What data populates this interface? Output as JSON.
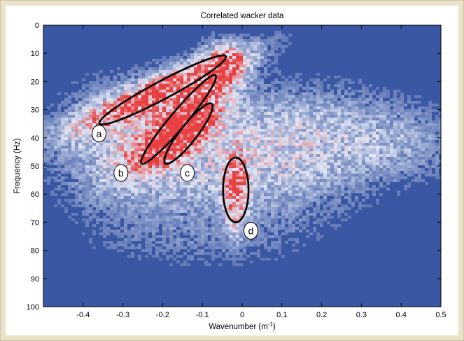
{
  "chart_data": {
    "type": "heatmap",
    "title": "Correlated wacker data",
    "xlabel": "Wavenumber (m",
    "xlabel_sup": "-1",
    "xlabel_close": ")",
    "ylabel": "Frequency (Hz)",
    "xlim": [
      -0.5,
      0.5
    ],
    "ylim": [
      0,
      100
    ],
    "y_reversed": true,
    "x_ticks": [
      -0.4,
      -0.3,
      -0.2,
      -0.1,
      0,
      0.1,
      0.2,
      0.3,
      0.4,
      0.5
    ],
    "x_tick_labels": [
      "-0.4",
      "-0.3",
      "-0.2",
      "-0.1",
      "0",
      "0.1",
      "0.2",
      "0.3",
      "0.4",
      "0.5"
    ],
    "y_ticks": [
      0,
      10,
      20,
      30,
      40,
      50,
      60,
      70,
      80,
      90,
      100
    ],
    "y_tick_labels": [
      "0",
      "10",
      "20",
      "30",
      "40",
      "50",
      "60",
      "70",
      "80",
      "90",
      "100"
    ],
    "colors": {
      "background": "#3a57a3",
      "mid": "#d9deef",
      "high": "#e83a3a"
    },
    "annotations": [
      {
        "id": "a",
        "label": "a",
        "ellipse": {
          "cx": -0.2,
          "cy": 23,
          "rx": 0.18,
          "ry": 3.2,
          "angle_deg": -28
        },
        "label_pos": {
          "x": -0.36,
          "y": 38.5
        }
      },
      {
        "id": "b",
        "label": "b",
        "ellipse": {
          "cx": -0.16,
          "cy": 33.5,
          "rx": 0.145,
          "ry": 2.9,
          "angle_deg": -50
        },
        "label_pos": {
          "x": -0.305,
          "y": 52.5
        }
      },
      {
        "id": "c",
        "label": "c",
        "ellipse": {
          "cx": -0.135,
          "cy": 38.5,
          "rx": 0.095,
          "ry": 3.0,
          "angle_deg": -52
        },
        "label_pos": {
          "x": -0.138,
          "y": 52.5
        }
      },
      {
        "id": "d",
        "label": "d",
        "ellipse": {
          "cx": -0.016,
          "cy": 58.5,
          "rx": 0.032,
          "ry": 11.5,
          "angle_deg": 0
        },
        "label_pos": {
          "x": 0.022,
          "y": 73
        }
      }
    ]
  }
}
